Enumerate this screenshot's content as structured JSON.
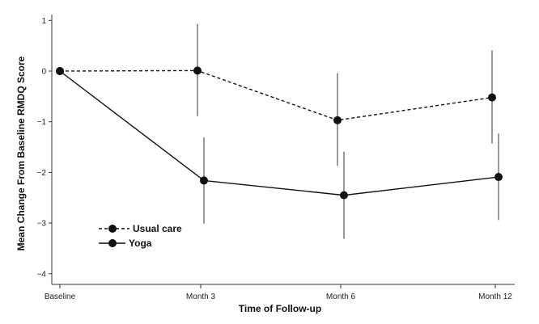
{
  "chart_data": {
    "type": "line",
    "title": "",
    "xlabel": "Time of Follow-up",
    "ylabel": "Mean Change From Baseline RMDQ Score",
    "categories": [
      "Baseline",
      "Month 3",
      "Month 6",
      "Month 12"
    ],
    "ylim": [
      -4.2,
      1.1
    ],
    "yticks": [
      1,
      0,
      -1,
      -2,
      -3,
      -4
    ],
    "ytick_labels": [
      "1",
      "0",
      "−1",
      "−2",
      "−3",
      "−4"
    ],
    "grid": false,
    "legend_position": "bottom-left",
    "series": [
      {
        "name": "Usual care",
        "style": "dashed",
        "color": "#111111",
        "values": [
          0,
          0.01,
          -0.97,
          -0.52
        ],
        "ci_low": [
          null,
          -0.89,
          -1.87,
          -1.43
        ],
        "ci_high": [
          null,
          0.93,
          -0.04,
          0.41
        ]
      },
      {
        "name": "Yoga",
        "style": "solid",
        "color": "#111111",
        "values": [
          0,
          -2.16,
          -2.45,
          -2.09
        ],
        "ci_low": [
          null,
          -3.01,
          -3.31,
          -2.94
        ],
        "ci_high": [
          null,
          -1.31,
          -1.59,
          -1.23
        ]
      }
    ]
  }
}
